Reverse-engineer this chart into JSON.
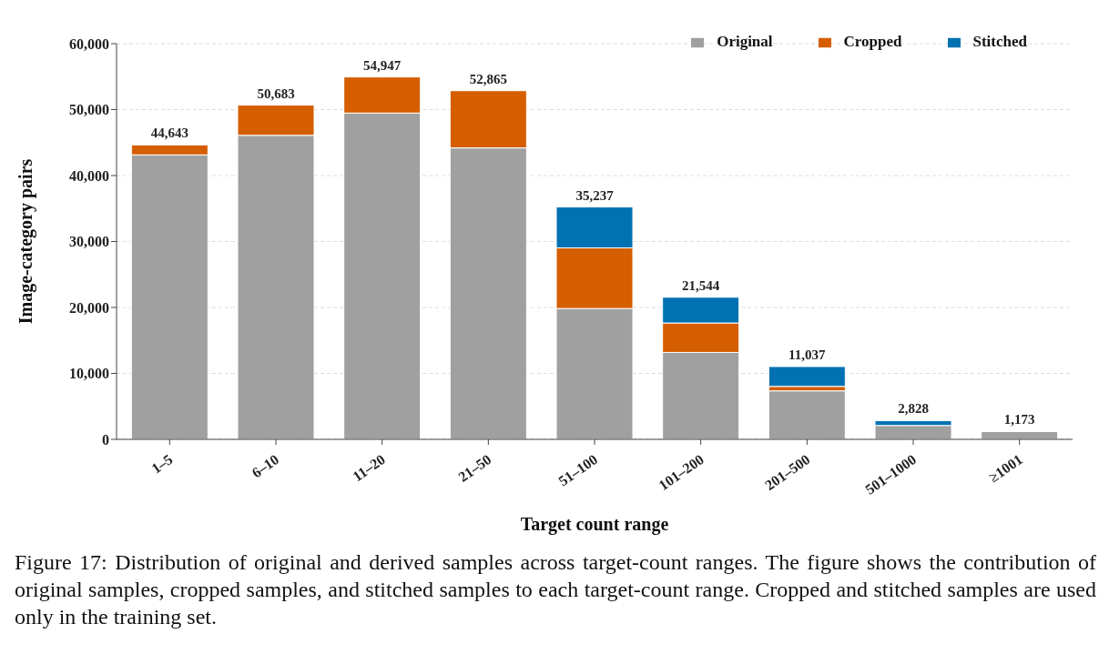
{
  "chart_data": {
    "type": "bar",
    "stacked": true,
    "xlabel": "Target count range",
    "ylabel": "Image-category pairs",
    "categories": [
      "1–5",
      "6–10",
      "11–20",
      "21–50",
      "51–100",
      "101–200",
      "201–500",
      "501–1000",
      "≥1001"
    ],
    "series": [
      {
        "name": "Original",
        "color": "#a0a0a0",
        "values": [
          43140,
          46100,
          49480,
          44190,
          19840,
          13180,
          7350,
          2100,
          1173
        ]
      },
      {
        "name": "Cropped",
        "color": "#d55e00",
        "values": [
          1503,
          4583,
          5467,
          8675,
          9190,
          4460,
          680,
          0,
          0
        ]
      },
      {
        "name": "Stitched",
        "color": "#0072b2",
        "values": [
          0,
          0,
          0,
          0,
          6207,
          3904,
          3007,
          728,
          0
        ]
      }
    ],
    "totals": [
      "44,643",
      "50,683",
      "54,947",
      "52,865",
      "35,237",
      "21,544",
      "11,037",
      "2,828",
      "1,173"
    ],
    "ylim": [
      0,
      60000
    ],
    "yticks": [
      {
        "value": 0,
        "label": "0"
      },
      {
        "value": 10000,
        "label": "10,000"
      },
      {
        "value": 20000,
        "label": "20,000"
      },
      {
        "value": 30000,
        "label": "30,000"
      },
      {
        "value": 40000,
        "label": "40,000"
      },
      {
        "value": 50000,
        "label": "50,000"
      },
      {
        "value": 60000,
        "label": "60,000"
      }
    ],
    "grid": "y",
    "legend": "top right",
    "annotations": [
      "Figure 17: Distribution of original and derived samples across target-count ranges. The figure shows the contribution of original samples, cropped samples, and stitched samples to each target-count range. Cropped and stitched samples are used only in the training set."
    ]
  }
}
